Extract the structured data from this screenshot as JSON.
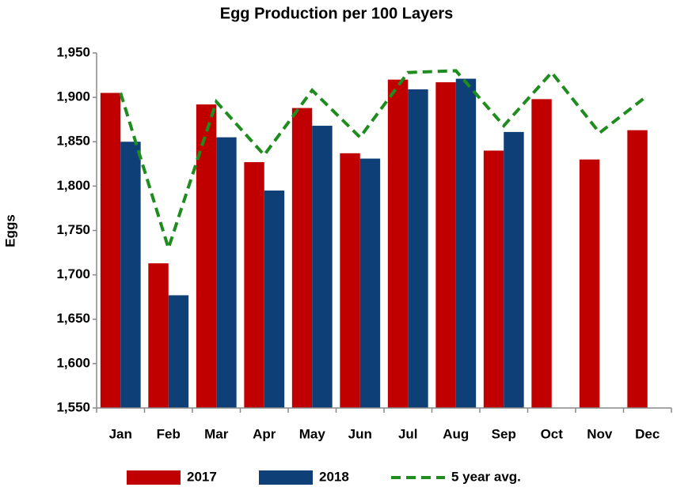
{
  "chart_data": {
    "type": "bar",
    "title": "Egg Production per 100 Layers",
    "y_label": "Eggs",
    "categories": [
      "Jan",
      "Feb",
      "Mar",
      "Apr",
      "May",
      "Jun",
      "Jul",
      "Aug",
      "Sep",
      "Oct",
      "Nov",
      "Dec"
    ],
    "series": [
      {
        "name": "2017",
        "type": "bar",
        "color": "#c00000",
        "values": [
          1905,
          1713,
          1892,
          1827,
          1888,
          1837,
          1920,
          1917,
          1840,
          1898,
          1830,
          1863
        ]
      },
      {
        "name": "2018",
        "type": "bar",
        "color": "#0e3f76",
        "values": [
          1850,
          1677,
          1855,
          1795,
          1868,
          1831,
          1909,
          1921,
          1861,
          null,
          null,
          null
        ]
      },
      {
        "name": "5 year avg.",
        "type": "line",
        "color": "#1e8c1e",
        "dashed": true,
        "values": [
          1905,
          1730,
          1895,
          1835,
          1908,
          1855,
          1928,
          1930,
          1868,
          1928,
          1860,
          1902
        ]
      }
    ],
    "ylim": [
      1550,
      1950
    ],
    "yticks": [
      {
        "value": 1550,
        "label": "1,550"
      },
      {
        "value": 1600,
        "label": "1,600"
      },
      {
        "value": 1650,
        "label": "1,650"
      },
      {
        "value": 1700,
        "label": "1,700"
      },
      {
        "value": 1750,
        "label": "1,750"
      },
      {
        "value": 1800,
        "label": "1,800"
      },
      {
        "value": 1850,
        "label": "1,850"
      },
      {
        "value": 1900,
        "label": "1,900"
      },
      {
        "value": 1950,
        "label": "1,950"
      }
    ],
    "grid": false,
    "legend": "bottom"
  }
}
